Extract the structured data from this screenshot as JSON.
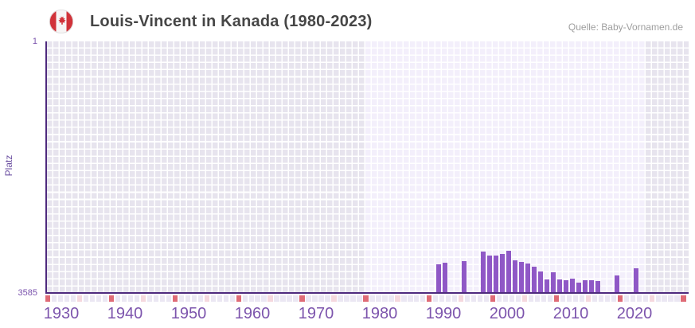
{
  "header": {
    "title": "Louis-Vincent in Kanada (1980-2023)",
    "source": "Quelle: Baby-Vornamen.de"
  },
  "y_axis": {
    "label": "Platz",
    "top_tick": "1",
    "bottom_tick": "3585"
  },
  "colors": {
    "bar": "#8f58c6",
    "axis_line": "#4e2a7e",
    "band_default": "#e7e4ee",
    "band_highlight": "#f3effb",
    "strip_default": "#ebe7f3",
    "strip_red": "#df6b76",
    "strip_pink": "#f5d8de",
    "tick_text": "#7d55ad",
    "flag_red": "#d13239"
  },
  "chart_data": {
    "type": "bar",
    "title": "Louis-Vincent in Kanada (1980-2023)",
    "ylabel": "Platz",
    "y_inverted": true,
    "ylim": [
      1,
      3585
    ],
    "x_range": [
      1928,
      2028
    ],
    "grid": true,
    "highlight_band_years": [
      1978,
      2022
    ],
    "decade_ticks": [
      1930,
      1940,
      1950,
      1960,
      1970,
      1980,
      1990,
      2000,
      2010,
      2020
    ],
    "strip_red_years": [
      1928,
      1938,
      1948,
      1958,
      1968,
      1978,
      1988,
      1998,
      2008,
      2018,
      2028
    ],
    "strip_pink_years": [
      1933,
      1943,
      1953,
      1963,
      1973,
      1983,
      1993,
      2003,
      2013,
      2023
    ],
    "series": [
      {
        "name": "Platz",
        "points": [
          {
            "year": 1989,
            "rank": 3190
          },
          {
            "year": 1990,
            "rank": 3167
          },
          {
            "year": 1993,
            "rank": 3144
          },
          {
            "year": 1996,
            "rank": 3008
          },
          {
            "year": 1997,
            "rank": 3065
          },
          {
            "year": 1998,
            "rank": 3065
          },
          {
            "year": 1999,
            "rank": 3042
          },
          {
            "year": 2000,
            "rank": 2997
          },
          {
            "year": 2001,
            "rank": 3133
          },
          {
            "year": 2002,
            "rank": 3156
          },
          {
            "year": 2003,
            "rank": 3178
          },
          {
            "year": 2004,
            "rank": 3223
          },
          {
            "year": 2005,
            "rank": 3291
          },
          {
            "year": 2006,
            "rank": 3404
          },
          {
            "year": 2007,
            "rank": 3302
          },
          {
            "year": 2008,
            "rank": 3404
          },
          {
            "year": 2009,
            "rank": 3415
          },
          {
            "year": 2010,
            "rank": 3393
          },
          {
            "year": 2011,
            "rank": 3449
          },
          {
            "year": 2012,
            "rank": 3415
          },
          {
            "year": 2013,
            "rank": 3415
          },
          {
            "year": 2014,
            "rank": 3427
          },
          {
            "year": 2017,
            "rank": 3347
          },
          {
            "year": 2020,
            "rank": 3246
          }
        ]
      }
    ]
  }
}
